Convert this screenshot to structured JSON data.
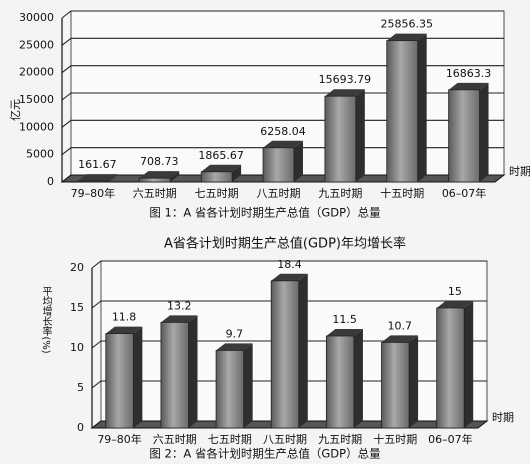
{
  "chart_data": [
    {
      "type": "bar",
      "ylabel": "亿元",
      "xlabel": "时期",
      "caption": "图 1：A 省各计划时期生产总值（GDP）总量",
      "categories": [
        "79–80年",
        "六五时期",
        "七五时期",
        "八五时期",
        "九五时期",
        "十五时期",
        "06–07年"
      ],
      "values": [
        161.67,
        708.73,
        1865.67,
        6258.04,
        15693.79,
        25856.35,
        16863.3
      ],
      "ylim": [
        0,
        30000
      ],
      "yticks": [
        0,
        5000,
        10000,
        15000,
        20000,
        25000,
        30000
      ],
      "grid": true,
      "color": "#8a8a8a"
    },
    {
      "type": "bar",
      "title": "A省各计划时期生产总值(GDP)年均增长率",
      "ylabel": "平均增长率(%)",
      "xlabel": "时期",
      "caption": "图 2：A 省各计划时期生产总值（GDP）总量",
      "categories": [
        "79–80年",
        "六五时期",
        "七五时期",
        "八五时期",
        "九五时期",
        "十五时期",
        "06–07年"
      ],
      "values": [
        11.8,
        13.2,
        9.7,
        18.4,
        11.5,
        10.7,
        15
      ],
      "ylim": [
        0,
        20
      ],
      "yticks": [
        0,
        5,
        10,
        15,
        20
      ],
      "grid": true,
      "color": "#8a8a8a"
    }
  ]
}
